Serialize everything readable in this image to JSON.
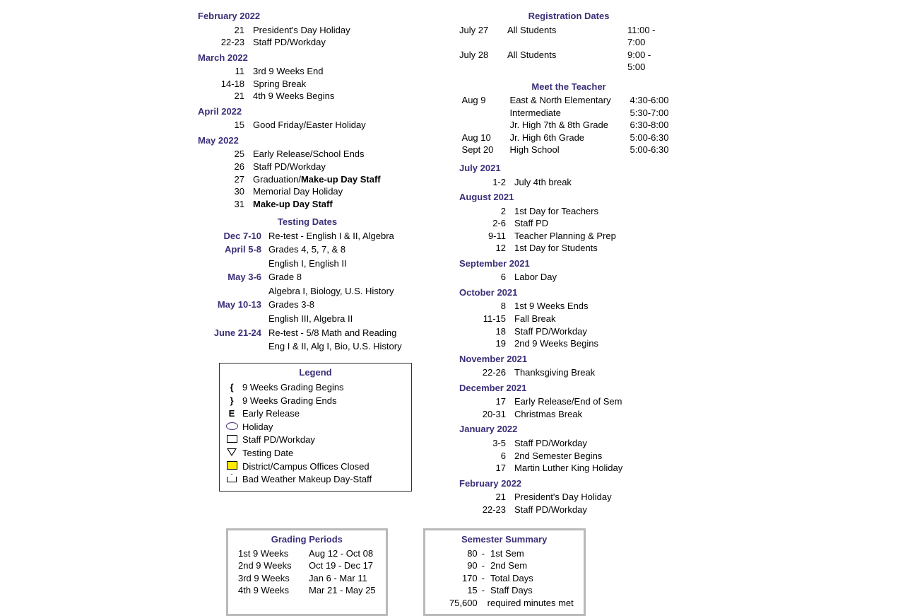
{
  "left_sections": [
    {
      "title": "February 2022",
      "items": [
        {
          "date": "21",
          "text": "President's Day Holiday"
        },
        {
          "date": "22-23",
          "text": "Staff PD/Workday"
        }
      ]
    },
    {
      "title": "March 2022",
      "items": [
        {
          "date": "11",
          "text": "3rd 9 Weeks End"
        },
        {
          "date": "14-18",
          "text": "Spring Break"
        },
        {
          "date": "21",
          "text": "4th 9 Weeks Begins"
        }
      ]
    },
    {
      "title": "April 2022",
      "items": [
        {
          "date": "15",
          "text": "Good Friday/Easter Holiday"
        }
      ]
    },
    {
      "title": "May 2022",
      "items": [
        {
          "date": "25",
          "text": "Early Release/School Ends"
        },
        {
          "date": "26",
          "text": "Staff PD/Workday"
        },
        {
          "date": "27",
          "text": "Graduation/",
          "bold_suffix": "Make-up Day Staff"
        },
        {
          "date": "30",
          "text": "Memorial Day Holiday"
        },
        {
          "date": "31",
          "text": "",
          "bold_suffix": "Make-up Day Staff"
        }
      ]
    }
  ],
  "testing": {
    "title": "Testing Dates",
    "rows": [
      {
        "date": "Dec 7-10",
        "text": "Re-test - English I & II, Algebra"
      },
      {
        "date": "April 5-8",
        "text": "Grades 4, 5, 7, & 8",
        "sub": "English I, English II"
      },
      {
        "date": "May 3-6",
        "text": "Grade 8",
        "sub": "Algebra I, Biology, U.S. History"
      },
      {
        "date": "May 10-13",
        "text": "Grades 3-8",
        "sub": "English III, Algebra II"
      },
      {
        "date": "June 21-24",
        "text": "Re-test - 5/8 Math and Reading",
        "sub": "Eng I & II, Alg I, Bio, U.S. History"
      }
    ]
  },
  "legend": {
    "title": "Legend",
    "rows": [
      {
        "sym": "{",
        "text": "9 Weeks Grading Begins"
      },
      {
        "sym": "}",
        "text": "9 Weeks Grading Ends"
      },
      {
        "sym": "E",
        "text": "Early Release"
      },
      {
        "icon": "oval",
        "text": "Holiday"
      },
      {
        "icon": "rect",
        "text": "Staff PD/Workday"
      },
      {
        "icon": "tri",
        "text": "Testing Date"
      },
      {
        "icon": "yrect",
        "text": "District/Campus Offices Closed"
      },
      {
        "icon": "pent",
        "text": "Bad Weather Makeup Day-Staff"
      }
    ]
  },
  "registration": {
    "title": "Registration Dates",
    "rows": [
      {
        "c1": "July 27",
        "c2": "All Students",
        "c3": "11:00 - 7:00"
      },
      {
        "c1": "July 28",
        "c2": "All Students",
        "c3": "9:00 - 5:00"
      }
    ]
  },
  "meet_teacher": {
    "title": "Meet the Teacher",
    "rows": [
      {
        "c1": "Aug   9",
        "c2": "East & North Elementary",
        "c3": "4:30-6:00"
      },
      {
        "c1": "",
        "c2": "Intermediate",
        "c3": "5:30-7:00"
      },
      {
        "c1": "",
        "c2": "Jr. High 7th & 8th Grade",
        "c3": "6:30-8:00"
      },
      {
        "c1": "Aug  10",
        "c2": "Jr. High 6th Grade",
        "c3": "5:00-6:30"
      },
      {
        "c1": "Sept 20",
        "c2": "High School",
        "c3": "5:00-6:30"
      }
    ]
  },
  "right_sections": [
    {
      "title": "July 2021",
      "items": [
        {
          "date": "1-2",
          "text": "July 4th break"
        }
      ]
    },
    {
      "title": "August 2021",
      "items": [
        {
          "date": "2",
          "text": "1st Day for Teachers"
        },
        {
          "date": "2-6",
          "text": "Staff PD"
        },
        {
          "date": "9-11",
          "text": "Teacher Planning & Prep"
        },
        {
          "date": "12",
          "text": "1st Day for Students"
        }
      ]
    },
    {
      "title": "September 2021",
      "items": [
        {
          "date": "6",
          "text": "Labor Day"
        }
      ]
    },
    {
      "title": "October 2021",
      "items": [
        {
          "date": "8",
          "text": "1st 9 Weeks Ends"
        },
        {
          "date": "11-15",
          "text": "Fall Break"
        },
        {
          "date": "18",
          "text": "Staff PD/Workday"
        },
        {
          "date": "19",
          "text": "2nd 9 Weeks Begins"
        }
      ]
    },
    {
      "title": "November 2021",
      "items": [
        {
          "date": "22-26",
          "text": "Thanksgiving Break"
        }
      ]
    },
    {
      "title": "December 2021",
      "items": [
        {
          "date": "17",
          "text": "Early Release/End of Sem"
        },
        {
          "date": "20-31",
          "text": "Christmas Break"
        }
      ]
    },
    {
      "title": "January 2022",
      "items": [
        {
          "date": "3-5",
          "text": "Staff PD/Workday"
        },
        {
          "date": "6",
          "text": "2nd Semester Begins"
        },
        {
          "date": "17",
          "text": "Martin Luther King Holiday"
        }
      ]
    },
    {
      "title": "February 2022",
      "items": [
        {
          "date": "21",
          "text": "President's Day Holiday"
        },
        {
          "date": "22-23",
          "text": "Staff PD/Workday"
        }
      ]
    }
  ],
  "grading": {
    "title": "Grading Periods",
    "rows": [
      {
        "label": "1st 9 Weeks",
        "range": "Aug 12 - Oct 08"
      },
      {
        "label": "2nd 9 Weeks",
        "range": "Oct 19 - Dec 17"
      },
      {
        "label": "3rd 9 Weeks",
        "range": "Jan 6 - Mar 11"
      },
      {
        "label": "4th 9 Weeks",
        "range": "Mar 21 - May 25"
      }
    ]
  },
  "semester": {
    "title": "Semester Summary",
    "rows": [
      {
        "n": "80",
        "d": "-",
        "label": "1st Sem"
      },
      {
        "n": "90",
        "d": "-",
        "label": "2nd Sem"
      },
      {
        "n": "170",
        "d": "-",
        "label": "Total Days"
      },
      {
        "n": "15",
        "d": "-",
        "label": "Staff Days"
      },
      {
        "n": "75,600",
        "d": " ",
        "label": "required minutes met"
      }
    ]
  },
  "heading_color": "#3b2f78"
}
